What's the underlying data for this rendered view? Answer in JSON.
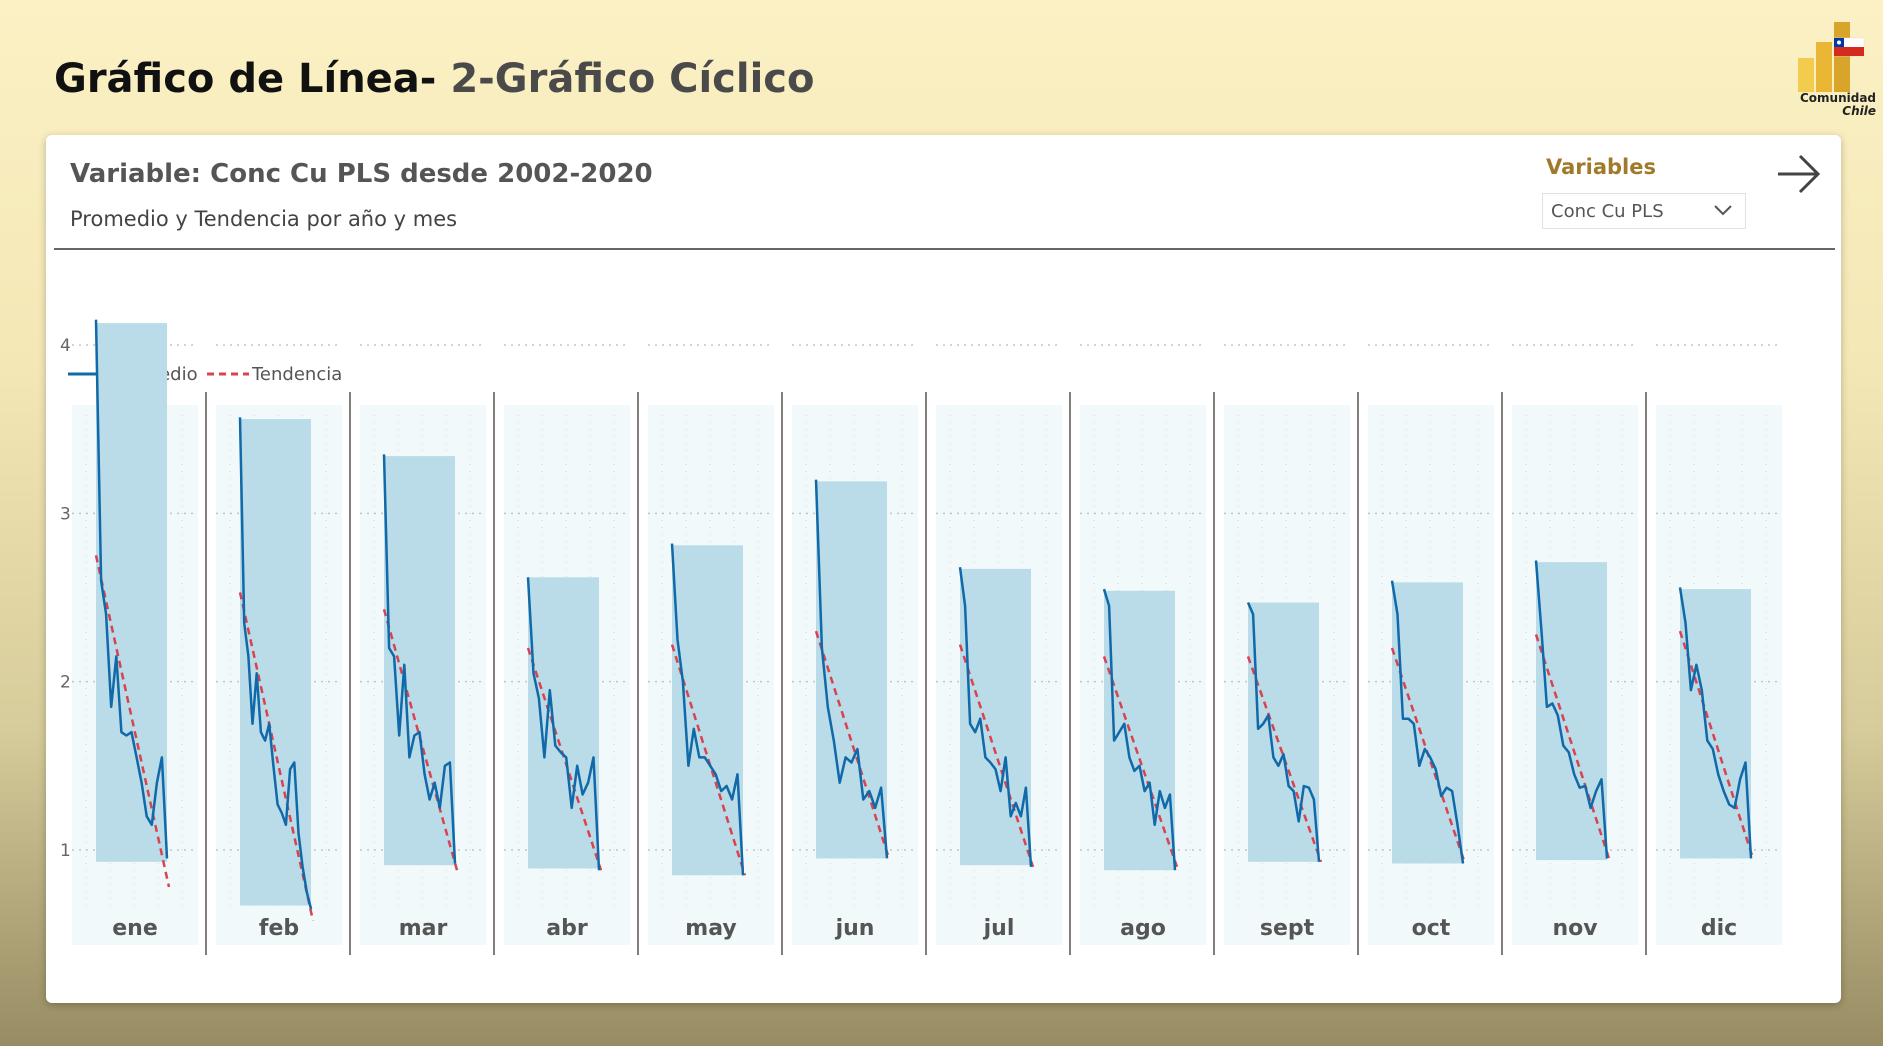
{
  "header": {
    "title_main": "Gráfico de Línea-",
    "title_sub": "2-Gráfico Cíclico"
  },
  "logo": {
    "line1": "Comunidad",
    "line2": "Chile",
    "icon": "power-bi-chile-flag-icon"
  },
  "card": {
    "title": "Variable: Conc Cu PLS desde 2002-2020",
    "subtitle": "Promedio y Tendencia por año y mes"
  },
  "slicer": {
    "label": "Variables",
    "selected": "Conc Cu PLS",
    "icon": "chevron-down-icon"
  },
  "nav": {
    "icon": "arrow-right-icon"
  },
  "colors": {
    "promedio": "#1069a8",
    "tendencia": "#d9434f",
    "band": "#badbe8",
    "panel_bg": "#f2f9fb"
  },
  "chart_data": {
    "type": "line",
    "legend": [
      {
        "name": "Promedio",
        "style": "solid"
      },
      {
        "name": "Tendencia",
        "style": "dashed"
      }
    ],
    "legend_position": "top-left",
    "y_ticks": [
      1,
      2,
      3,
      4
    ],
    "ylim": [
      0.5,
      4.5
    ],
    "grid": true,
    "panels": [
      {
        "month": "ene",
        "promedio": [
          4.15,
          2.6,
          2.4,
          1.85,
          2.15,
          1.7,
          1.68,
          1.7,
          1.55,
          1.4,
          1.2,
          1.15,
          1.4,
          1.55,
          0.95
        ],
        "band": [
          0.93,
          4.13
        ],
        "trend": [
          2.75,
          0.78
        ]
      },
      {
        "month": "feb",
        "promedio": [
          3.57,
          2.35,
          2.15,
          1.75,
          2.05,
          1.7,
          1.65,
          1.75,
          1.5,
          1.27,
          1.22,
          1.15,
          1.48,
          1.52,
          1.1,
          0.9,
          0.75,
          0.65
        ],
        "band": [
          0.67,
          3.56
        ],
        "trend": [
          2.53,
          0.58
        ]
      },
      {
        "month": "mar",
        "promedio": [
          3.35,
          2.2,
          2.15,
          1.68,
          2.1,
          1.55,
          1.68,
          1.7,
          1.45,
          1.3,
          1.4,
          1.25,
          1.5,
          1.52,
          0.92
        ],
        "band": [
          0.91,
          3.34
        ],
        "trend": [
          2.43,
          0.88
        ]
      },
      {
        "month": "abr",
        "promedio": [
          2.62,
          2.05,
          1.9,
          1.55,
          1.95,
          1.62,
          1.58,
          1.55,
          1.25,
          1.5,
          1.33,
          1.4,
          1.55,
          0.88
        ],
        "band": [
          0.89,
          2.62
        ],
        "trend": [
          2.2,
          0.88
        ]
      },
      {
        "month": "may",
        "promedio": [
          2.82,
          2.25,
          2.0,
          1.5,
          1.72,
          1.55,
          1.55,
          1.5,
          1.45,
          1.35,
          1.38,
          1.3,
          1.45,
          0.85
        ],
        "band": [
          0.85,
          2.81
        ],
        "trend": [
          2.22,
          0.85
        ]
      },
      {
        "month": "jun",
        "promedio": [
          3.2,
          2.2,
          1.85,
          1.65,
          1.4,
          1.55,
          1.52,
          1.6,
          1.3,
          1.35,
          1.25,
          1.37,
          0.95
        ],
        "band": [
          0.95,
          3.19
        ],
        "trend": [
          2.3,
          0.95
        ]
      },
      {
        "month": "jul",
        "promedio": [
          2.68,
          2.45,
          1.75,
          1.7,
          1.78,
          1.55,
          1.52,
          1.48,
          1.35,
          1.55,
          1.2,
          1.28,
          1.2,
          1.37,
          0.9
        ],
        "band": [
          0.91,
          2.67
        ],
        "trend": [
          2.22,
          0.9
        ]
      },
      {
        "month": "ago",
        "promedio": [
          2.55,
          2.45,
          1.65,
          1.7,
          1.75,
          1.55,
          1.47,
          1.5,
          1.35,
          1.4,
          1.15,
          1.35,
          1.25,
          1.33,
          0.88
        ],
        "band": [
          0.88,
          2.54
        ],
        "trend": [
          2.15,
          0.9
        ]
      },
      {
        "month": "sept",
        "promedio": [
          2.47,
          2.4,
          1.72,
          1.75,
          1.8,
          1.55,
          1.5,
          1.57,
          1.38,
          1.35,
          1.17,
          1.38,
          1.37,
          1.3,
          0.93
        ],
        "band": [
          0.93,
          2.47
        ],
        "trend": [
          2.15,
          0.93
        ]
      },
      {
        "month": "oct",
        "promedio": [
          2.6,
          2.4,
          1.78,
          1.78,
          1.75,
          1.5,
          1.6,
          1.55,
          1.48,
          1.32,
          1.37,
          1.35,
          1.15,
          0.92
        ],
        "band": [
          0.92,
          2.59
        ],
        "trend": [
          2.2,
          0.92
        ]
      },
      {
        "month": "nov",
        "promedio": [
          2.72,
          2.3,
          1.85,
          1.87,
          1.8,
          1.62,
          1.58,
          1.45,
          1.37,
          1.38,
          1.25,
          1.35,
          1.42,
          0.95
        ],
        "band": [
          0.94,
          2.71
        ],
        "trend": [
          2.28,
          0.95
        ]
      },
      {
        "month": "dic",
        "promedio": [
          2.56,
          2.35,
          1.95,
          2.1,
          1.95,
          1.65,
          1.6,
          1.45,
          1.35,
          1.27,
          1.25,
          1.42,
          1.52,
          0.95
        ],
        "band": [
          0.95,
          2.55
        ],
        "trend": [
          2.3,
          0.95
        ]
      }
    ]
  }
}
